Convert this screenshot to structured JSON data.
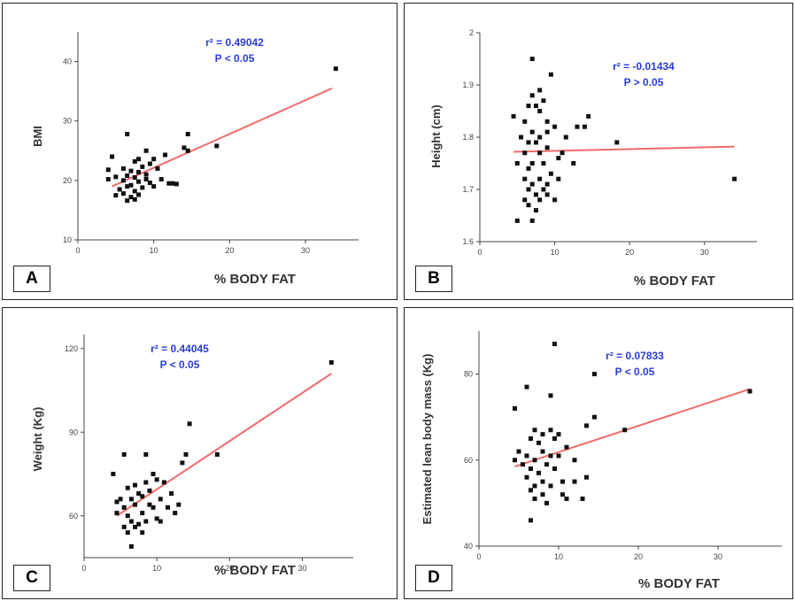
{
  "colors": {
    "points": "#111111",
    "fit_line": "#f06b6b",
    "annotation": "#2a3dd6",
    "axis": "#444444"
  },
  "chart_data": [
    {
      "panel": "A",
      "type": "scatter",
      "xlabel": "% BODY FAT",
      "ylabel": "BMI",
      "xlim": [
        0,
        37
      ],
      "ylim": [
        10,
        45
      ],
      "xticks": [
        0,
        10,
        20,
        30
      ],
      "yticks": [
        10,
        20,
        30,
        40
      ],
      "annotation": {
        "r2": "r² = 0.49042",
        "p": "P < 0.05"
      },
      "fit_line": [
        [
          4.5,
          19
        ],
        [
          33.5,
          35.5
        ]
      ],
      "points": [
        [
          34,
          38.8
        ],
        [
          6.5,
          27.8
        ],
        [
          14.5,
          27.8
        ],
        [
          18.3,
          25.8
        ],
        [
          14,
          25.5
        ],
        [
          14.5,
          25
        ],
        [
          9,
          25
        ],
        [
          11.5,
          24.3
        ],
        [
          10,
          23.6
        ],
        [
          8,
          23.6
        ],
        [
          4.5,
          24
        ],
        [
          7.5,
          23.2
        ],
        [
          9.5,
          22.8
        ],
        [
          8.5,
          22.3
        ],
        [
          6,
          22
        ],
        [
          4,
          21.8
        ],
        [
          10.5,
          22
        ],
        [
          7,
          21.6
        ],
        [
          8,
          21.4
        ],
        [
          9,
          21
        ],
        [
          6.5,
          20.8
        ],
        [
          5,
          20.6
        ],
        [
          7.5,
          20.5
        ],
        [
          11,
          20.2
        ],
        [
          4,
          20.2
        ],
        [
          6,
          20
        ],
        [
          8,
          19.8
        ],
        [
          9.5,
          19.6
        ],
        [
          12,
          19.5
        ],
        [
          13,
          19.4
        ],
        [
          7,
          19.2
        ],
        [
          6.5,
          19
        ],
        [
          10,
          19
        ],
        [
          8.5,
          18.8
        ],
        [
          5.5,
          18.5
        ],
        [
          7.5,
          18.2
        ],
        [
          6,
          17.8
        ],
        [
          8,
          17.6
        ],
        [
          5,
          17.5
        ],
        [
          7,
          17.2
        ],
        [
          6.5,
          16.6
        ],
        [
          7.5,
          16.8
        ],
        [
          9,
          20.2
        ],
        [
          12.5,
          19.5
        ]
      ]
    },
    {
      "panel": "B",
      "type": "scatter",
      "xlabel": "% BODY FAT",
      "ylabel": "Height (cm)",
      "xlim": [
        0,
        37
      ],
      "ylim": [
        1.6,
        2.0
      ],
      "xticks": [
        0,
        10,
        20,
        30
      ],
      "yticks": [
        1.6,
        1.7,
        1.8,
        1.9,
        2.0
      ],
      "annotation": {
        "r2": "r² = -0.01434",
        "p": "P > 0.05"
      },
      "fit_line": [
        [
          4.5,
          1.772
        ],
        [
          34,
          1.782
        ]
      ],
      "points": [
        [
          7,
          1.95
        ],
        [
          9.5,
          1.92
        ],
        [
          8,
          1.89
        ],
        [
          7,
          1.88
        ],
        [
          8.5,
          1.87
        ],
        [
          6.5,
          1.86
        ],
        [
          7.5,
          1.86
        ],
        [
          8,
          1.85
        ],
        [
          4.5,
          1.84
        ],
        [
          14.5,
          1.84
        ],
        [
          9,
          1.83
        ],
        [
          6,
          1.83
        ],
        [
          13,
          1.82
        ],
        [
          14,
          1.82
        ],
        [
          7,
          1.81
        ],
        [
          9,
          1.81
        ],
        [
          10,
          1.82
        ],
        [
          5.5,
          1.8
        ],
        [
          8,
          1.8
        ],
        [
          11.5,
          1.8
        ],
        [
          6.5,
          1.79
        ],
        [
          7.5,
          1.79
        ],
        [
          9,
          1.78
        ],
        [
          18.3,
          1.79
        ],
        [
          6,
          1.77
        ],
        [
          8,
          1.77
        ],
        [
          10.5,
          1.76
        ],
        [
          11,
          1.77
        ],
        [
          5,
          1.75
        ],
        [
          7,
          1.75
        ],
        [
          8.5,
          1.75
        ],
        [
          12.5,
          1.75
        ],
        [
          6.5,
          1.74
        ],
        [
          9.5,
          1.73
        ],
        [
          6,
          1.72
        ],
        [
          8,
          1.72
        ],
        [
          10.5,
          1.72
        ],
        [
          34,
          1.72
        ],
        [
          7,
          1.71
        ],
        [
          9,
          1.71
        ],
        [
          6.5,
          1.7
        ],
        [
          8.5,
          1.7
        ],
        [
          7.5,
          1.69
        ],
        [
          9,
          1.69
        ],
        [
          6,
          1.68
        ],
        [
          8,
          1.68
        ],
        [
          10,
          1.68
        ],
        [
          6.5,
          1.67
        ],
        [
          7.5,
          1.66
        ],
        [
          5,
          1.64
        ],
        [
          7,
          1.64
        ]
      ]
    },
    {
      "panel": "C",
      "type": "scatter",
      "xlabel": "% BODY FAT",
      "ylabel": "Weight (Kg)",
      "xlim": [
        0,
        37
      ],
      "ylim": [
        45,
        125
      ],
      "xticks": [
        0,
        10,
        20,
        30
      ],
      "yticks": [
        60,
        90,
        120
      ],
      "annotation": {
        "r2": "r² = 0.44045",
        "p": "P < 0.05"
      },
      "fit_line": [
        [
          4.5,
          60
        ],
        [
          34,
          111
        ]
      ],
      "points": [
        [
          34,
          115
        ],
        [
          14.5,
          93
        ],
        [
          18.3,
          82
        ],
        [
          14,
          82
        ],
        [
          5.5,
          82
        ],
        [
          8.5,
          82
        ],
        [
          13.5,
          79
        ],
        [
          4,
          75
        ],
        [
          9.5,
          75
        ],
        [
          11,
          72
        ],
        [
          7,
          71
        ],
        [
          8.5,
          72
        ],
        [
          10,
          73
        ],
        [
          12,
          68
        ],
        [
          6,
          70
        ],
        [
          7.5,
          68
        ],
        [
          9,
          69
        ],
        [
          5,
          66
        ],
        [
          6.5,
          66
        ],
        [
          8,
          67
        ],
        [
          10.5,
          66
        ],
        [
          13,
          64
        ],
        [
          5.5,
          63
        ],
        [
          7,
          64
        ],
        [
          9,
          64
        ],
        [
          12.5,
          61
        ],
        [
          4.5,
          61
        ],
        [
          6,
          60
        ],
        [
          8,
          61
        ],
        [
          10,
          59
        ],
        [
          10.5,
          58
        ],
        [
          6.5,
          58
        ],
        [
          7.5,
          57
        ],
        [
          8.5,
          58
        ],
        [
          5.5,
          56
        ],
        [
          7,
          56
        ],
        [
          8,
          54
        ],
        [
          6,
          54
        ],
        [
          6.5,
          49
        ],
        [
          9.5,
          63
        ],
        [
          4.5,
          65
        ],
        [
          11.5,
          63
        ]
      ]
    },
    {
      "panel": "D",
      "type": "scatter",
      "xlabel": "% BODY FAT",
      "ylabel": "Estimated lean body mass (Kg)",
      "xlim": [
        0,
        38
      ],
      "ylim": [
        40,
        90
      ],
      "xticks": [
        0,
        10,
        20,
        30
      ],
      "yticks": [
        40,
        60,
        80
      ],
      "annotation": {
        "r2": "r² = 0.07833",
        "p": "P < 0.05"
      },
      "fit_line": [
        [
          4.5,
          58.5
        ],
        [
          34,
          76.5
        ]
      ],
      "points": [
        [
          9.5,
          87
        ],
        [
          14.5,
          80
        ],
        [
          34,
          76
        ],
        [
          6,
          77
        ],
        [
          9,
          75
        ],
        [
          4.5,
          72
        ],
        [
          14.5,
          70
        ],
        [
          13.5,
          68
        ],
        [
          18.3,
          67
        ],
        [
          7,
          67
        ],
        [
          9,
          67
        ],
        [
          8,
          66
        ],
        [
          10,
          66
        ],
        [
          6.5,
          65
        ],
        [
          9.5,
          65
        ],
        [
          7.5,
          64
        ],
        [
          11,
          63
        ],
        [
          5,
          62
        ],
        [
          8,
          62
        ],
        [
          6,
          61
        ],
        [
          9,
          61
        ],
        [
          10,
          61
        ],
        [
          12,
          60
        ],
        [
          4.5,
          60
        ],
        [
          7,
          60
        ],
        [
          8.5,
          59
        ],
        [
          5.5,
          59
        ],
        [
          6.5,
          58
        ],
        [
          9.5,
          58
        ],
        [
          7.5,
          57
        ],
        [
          13.5,
          56
        ],
        [
          6,
          56
        ],
        [
          8,
          55
        ],
        [
          10.5,
          55
        ],
        [
          12,
          55
        ],
        [
          7,
          54
        ],
        [
          9,
          54
        ],
        [
          6.5,
          53
        ],
        [
          8,
          52
        ],
        [
          10.5,
          52
        ],
        [
          7,
          51
        ],
        [
          11,
          51
        ],
        [
          8.5,
          50
        ],
        [
          13,
          51
        ],
        [
          6.5,
          46
        ]
      ]
    }
  ],
  "labels": [
    "A",
    "B",
    "C",
    "D"
  ]
}
